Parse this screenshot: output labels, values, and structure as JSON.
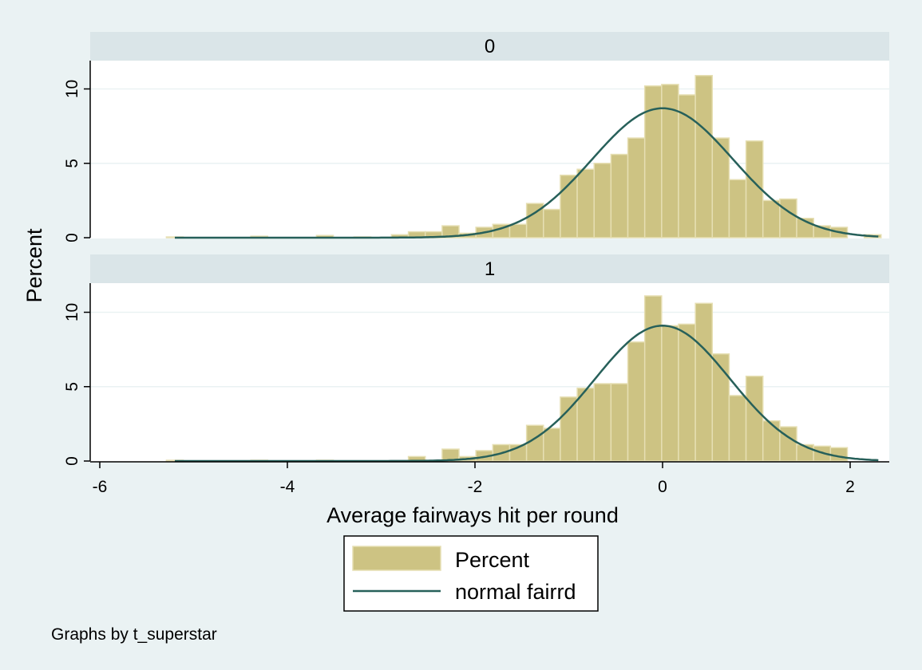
{
  "chart_data": {
    "type": "bar",
    "subtitle_note": "Graphs by t_superstar",
    "xlabel": "Average fairways hit per round",
    "ylabel": "Percent",
    "xlim": [
      -6.2,
      2.45
    ],
    "ylim": [
      0,
      12
    ],
    "xticks": [
      -6,
      -4,
      -2,
      0,
      2
    ],
    "yticks": [
      0,
      5,
      10
    ],
    "bin_width": 0.18,
    "legend": {
      "position": "bottom",
      "items": [
        "Percent",
        "normal fairrd"
      ]
    },
    "colors": {
      "bar_fill": "#cdc383",
      "bar_edge": "#e6dfb3",
      "line": "#27605a",
      "strip": "#dae5e8",
      "plot_bg": "#ffffff",
      "grid": "#eaf2f3"
    },
    "panels": [
      {
        "label": "0",
        "normal": {
          "mean": 0.0,
          "sd": 0.75,
          "peak": 8.7
        },
        "bins": [
          {
            "x": -5.2,
            "y": 0.05
          },
          {
            "x": -4.3,
            "y": 0.1
          },
          {
            "x": -3.6,
            "y": 0.15
          },
          {
            "x": -3.2,
            "y": 0.05
          },
          {
            "x": -2.8,
            "y": 0.2
          },
          {
            "x": -2.62,
            "y": 0.4
          },
          {
            "x": -2.44,
            "y": 0.4
          },
          {
            "x": -2.26,
            "y": 0.8
          },
          {
            "x": -2.08,
            "y": 0.3
          },
          {
            "x": -1.9,
            "y": 0.7
          },
          {
            "x": -1.72,
            "y": 0.9
          },
          {
            "x": -1.54,
            "y": 0.9
          },
          {
            "x": -1.36,
            "y": 2.3
          },
          {
            "x": -1.18,
            "y": 1.9
          },
          {
            "x": -1.0,
            "y": 4.2
          },
          {
            "x": -0.82,
            "y": 4.6
          },
          {
            "x": -0.64,
            "y": 5.0
          },
          {
            "x": -0.46,
            "y": 5.6
          },
          {
            "x": -0.28,
            "y": 6.7
          },
          {
            "x": -0.1,
            "y": 10.2
          },
          {
            "x": 0.08,
            "y": 10.3
          },
          {
            "x": 0.26,
            "y": 9.6
          },
          {
            "x": 0.44,
            "y": 10.9
          },
          {
            "x": 0.62,
            "y": 6.7
          },
          {
            "x": 0.8,
            "y": 3.9
          },
          {
            "x": 0.98,
            "y": 6.5
          },
          {
            "x": 1.16,
            "y": 2.5
          },
          {
            "x": 1.34,
            "y": 2.6
          },
          {
            "x": 1.52,
            "y": 1.3
          },
          {
            "x": 1.7,
            "y": 0.8
          },
          {
            "x": 1.88,
            "y": 0.7
          },
          {
            "x": 2.24,
            "y": 0.2
          }
        ]
      },
      {
        "label": "1",
        "normal": {
          "mean": 0.0,
          "sd": 0.72,
          "peak": 9.1
        },
        "bins": [
          {
            "x": -5.2,
            "y": 0.05
          },
          {
            "x": -4.3,
            "y": 0.05
          },
          {
            "x": -3.6,
            "y": 0.05
          },
          {
            "x": -2.62,
            "y": 0.3
          },
          {
            "x": -2.26,
            "y": 0.8
          },
          {
            "x": -2.08,
            "y": 0.3
          },
          {
            "x": -1.9,
            "y": 0.7
          },
          {
            "x": -1.72,
            "y": 1.1
          },
          {
            "x": -1.54,
            "y": 1.1
          },
          {
            "x": -1.36,
            "y": 2.4
          },
          {
            "x": -1.18,
            "y": 2.2
          },
          {
            "x": -1.0,
            "y": 4.3
          },
          {
            "x": -0.82,
            "y": 4.9
          },
          {
            "x": -0.64,
            "y": 5.2
          },
          {
            "x": -0.46,
            "y": 5.2
          },
          {
            "x": -0.28,
            "y": 8.0
          },
          {
            "x": -0.1,
            "y": 11.1
          },
          {
            "x": 0.08,
            "y": 9.1
          },
          {
            "x": 0.26,
            "y": 9.2
          },
          {
            "x": 0.44,
            "y": 10.6
          },
          {
            "x": 0.62,
            "y": 7.2
          },
          {
            "x": 0.8,
            "y": 4.4
          },
          {
            "x": 0.98,
            "y": 5.7
          },
          {
            "x": 1.16,
            "y": 2.7
          },
          {
            "x": 1.34,
            "y": 2.3
          },
          {
            "x": 1.52,
            "y": 1.1
          },
          {
            "x": 1.7,
            "y": 1.0
          },
          {
            "x": 1.88,
            "y": 0.9
          }
        ]
      }
    ]
  }
}
